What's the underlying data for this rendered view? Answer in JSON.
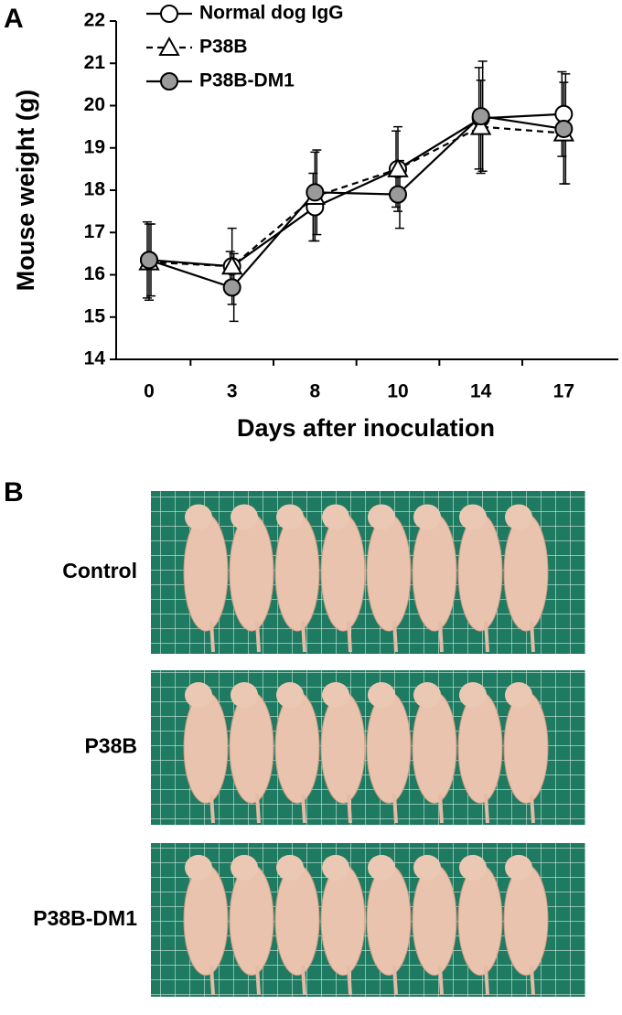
{
  "panel_labels": [
    "A",
    "B"
  ],
  "chart_data": {
    "type": "line",
    "xlabel": "Days after inoculation",
    "ylabel": "Mouse weight (g)",
    "categories": [
      "0",
      "3",
      "8",
      "10",
      "14",
      "17"
    ],
    "ylim": [
      14,
      22
    ],
    "yticks": [
      14,
      15,
      16,
      17,
      18,
      19,
      20,
      21,
      22
    ],
    "legend": "top-left",
    "series": [
      {
        "name": "Normal dog IgG",
        "color": "#000000",
        "marker": "circle-open",
        "line_style": "solid",
        "values": [
          16.35,
          16.2,
          17.6,
          18.5,
          19.7,
          19.8
        ],
        "errors": [
          0.9,
          0.35,
          0.8,
          0.9,
          1.2,
          1.0
        ]
      },
      {
        "name": "P38B",
        "color": "#000000",
        "marker": "triangle-open",
        "line_style": "dashed",
        "values": [
          16.3,
          16.2,
          17.85,
          18.5,
          19.5,
          19.35
        ],
        "errors": [
          0.9,
          0.9,
          1.05,
          1.0,
          1.1,
          1.2
        ]
      },
      {
        "name": "P38B-DM1",
        "color": "#000000",
        "marker": "circle-gray",
        "line_style": "solid",
        "values": [
          16.35,
          15.7,
          17.95,
          17.9,
          19.75,
          19.45
        ],
        "errors": [
          0.85,
          0.8,
          1.0,
          0.8,
          1.3,
          1.3
        ]
      }
    ]
  },
  "photo_rows": [
    "Control",
    "P38B",
    "P38B-DM1"
  ]
}
